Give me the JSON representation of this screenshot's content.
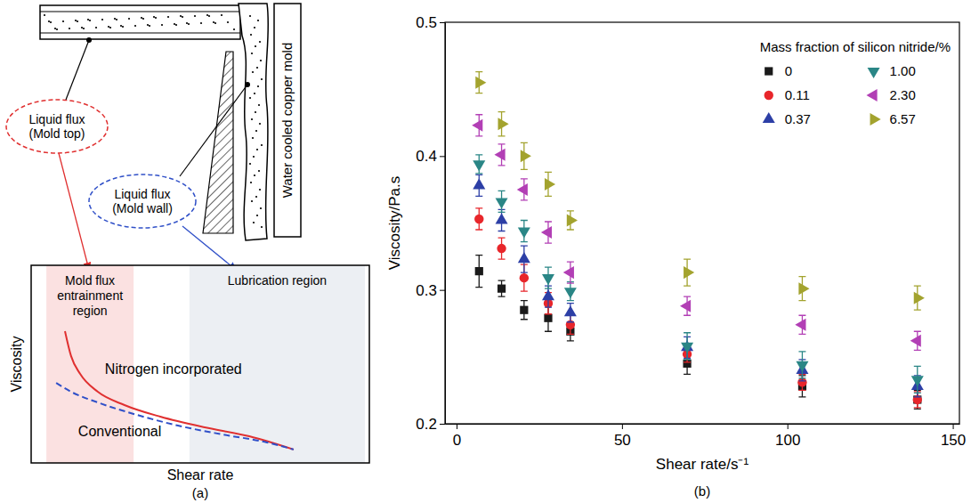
{
  "diagram": {
    "mold_top_label": "Liquid flux (Mold top)",
    "mold_wall_label": "Liquid flux (Mold wall)",
    "mold_label": "Water cooled copper mold"
  },
  "chart_data": [
    {
      "type": "line",
      "panel_label": "(a)",
      "x_label": "Shear rate",
      "y_label": "Viscosity",
      "xlim": [
        0,
        1
      ],
      "ylim": [
        0,
        1
      ],
      "tick_labels": false,
      "regions": [
        {
          "label": "Mold flux entrainment region",
          "x": [
            0.045,
            0.303
          ],
          "color": "#fbe1e1"
        },
        {
          "label": "Lubrication region",
          "x": [
            0.468,
            0.987
          ],
          "color": "#eceff3"
        }
      ],
      "series": [
        {
          "name": "Nitrogen incorporated",
          "color": "#e03030",
          "line_style": "solid",
          "x": [
            0.1,
            0.118,
            0.145,
            0.197,
            0.276,
            0.382,
            0.513,
            0.645,
            0.776
          ],
          "values": [
            0.667,
            0.541,
            0.45,
            0.36,
            0.293,
            0.234,
            0.18,
            0.135,
            0.068
          ]
        },
        {
          "name": "Conventional",
          "color": "#3050c8",
          "line_style": "dashed",
          "x": [
            0.074,
            0.118,
            0.197,
            0.303,
            0.434,
            0.566,
            0.697,
            0.776
          ],
          "values": [
            0.405,
            0.36,
            0.306,
            0.248,
            0.189,
            0.144,
            0.104,
            0.068
          ]
        }
      ]
    },
    {
      "type": "scatter",
      "panel_label": "(b)",
      "x_label": "Shear rate/s⁻¹",
      "y_label": "Viscosity/Pa.s",
      "legend_title": "Mass fraction of silicon nitride/%",
      "legend": "upper right",
      "xlim": [
        -3.5,
        152
      ],
      "xticks": [
        0,
        50,
        100,
        150
      ],
      "ylim": [
        0.2,
        0.5
      ],
      "yticks": [
        0.2,
        0.3,
        0.4,
        0.5
      ],
      "x": [
        6.8,
        13.6,
        20.4,
        27.7,
        34.4,
        69.7,
        104.5,
        139.3
      ],
      "series": [
        {
          "name": "0",
          "color": "#1a1a1a",
          "marker": "square",
          "values": [
            0.314,
            0.301,
            0.285,
            0.279,
            0.269,
            0.245,
            0.228,
            0.218
          ],
          "errors": [
            0.012,
            0.006,
            0.007,
            0.01,
            0.007,
            0.008,
            0.008,
            0.007
          ]
        },
        {
          "name": "0.11",
          "color": "#e8262b",
          "marker": "circle",
          "values": [
            0.353,
            0.331,
            0.309,
            0.29,
            0.274,
            0.252,
            0.231,
            0.218
          ],
          "errors": [
            0.008,
            0.008,
            0.01,
            0.008,
            0.007,
            0.006,
            0.006,
            0.006
          ]
        },
        {
          "name": "0.37",
          "color": "#2d3fa6",
          "marker": "triangle-up",
          "values": [
            0.378,
            0.352,
            0.323,
            0.295,
            0.283,
            0.257,
            0.24,
            0.228
          ],
          "errors": [
            0.008,
            0.008,
            0.01,
            0.008,
            0.007,
            0.008,
            0.008,
            0.008
          ]
        },
        {
          "name": "1.00",
          "color": "#2a8686",
          "marker": "triangle-down",
          "values": [
            0.394,
            0.366,
            0.344,
            0.309,
            0.299,
            0.258,
            0.244,
            0.233
          ],
          "errors": [
            0.007,
            0.008,
            0.008,
            0.008,
            0.007,
            0.01,
            0.01,
            0.01
          ]
        },
        {
          "name": "2.30",
          "color": "#b23fb5",
          "marker": "triangle-left",
          "values": [
            0.423,
            0.401,
            0.375,
            0.343,
            0.313,
            0.288,
            0.274,
            0.262
          ],
          "errors": [
            0.008,
            0.008,
            0.008,
            0.008,
            0.008,
            0.007,
            0.007,
            0.007
          ]
        },
        {
          "name": "6.57",
          "color": "#a3a32e",
          "marker": "triangle-right",
          "values": [
            0.455,
            0.424,
            0.4,
            0.379,
            0.352,
            0.313,
            0.301,
            0.294
          ],
          "errors": [
            0.008,
            0.009,
            0.01,
            0.009,
            0.007,
            0.01,
            0.009,
            0.009
          ]
        }
      ]
    }
  ]
}
